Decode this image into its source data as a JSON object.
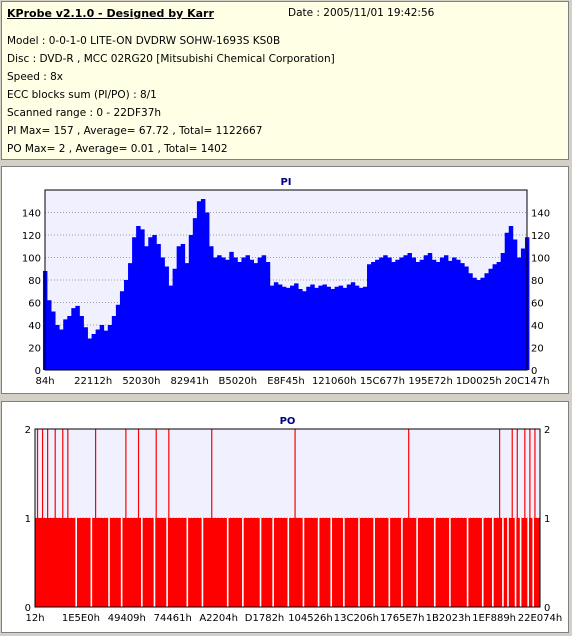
{
  "header": {
    "title": "KProbe v2.1.0 - Designed by Karr",
    "date": "Date : 2005/11/01 19:42:56",
    "lines": [
      "Model : 0-0-1-0 LITE-ON DVDRW SOHW-1693S KS0B",
      "Disc : DVD-R , MCC 02RG20   [Mitsubishi Chemical Corporation]",
      "Speed : 8x",
      "ECC blocks sum (PI/PO) : 8/1",
      "Scanned range : 0 - 22DF37h",
      "PI Max= 157 , Average= 67.72 , Total= 1122667",
      "PO Max= 2 , Average= 0.01 , Total= 1402"
    ]
  },
  "colors": {
    "pi_fill": "#0000ff",
    "po_fill": "#ff0000",
    "plot_bg": "#f0f0ff",
    "grid": "#a0a0a0",
    "title": "#000080"
  },
  "chart_data": [
    {
      "type": "area",
      "title": "PI",
      "ylim": [
        0,
        160
      ],
      "yticks": [
        0,
        20,
        40,
        60,
        80,
        100,
        120,
        140
      ],
      "xticks": [
        "84h",
        "22112h",
        "52030h",
        "82941h",
        "B5020h",
        "E8F45h",
        "121060h",
        "15C677h",
        "195E72h",
        "1D0025h",
        "20C147h"
      ],
      "series": [
        {
          "values": [
            88,
            62,
            52,
            40,
            36,
            45,
            48,
            55,
            57,
            48,
            38,
            28,
            32,
            36,
            40,
            35,
            40,
            48,
            58,
            70,
            80,
            95,
            118,
            128,
            125,
            110,
            118,
            120,
            112,
            100,
            92,
            75,
            90,
            110,
            112,
            95,
            120,
            135,
            150,
            152,
            140,
            110,
            100,
            102,
            100,
            98,
            105,
            100,
            96,
            100,
            102,
            98,
            95,
            100,
            102,
            96,
            75,
            78,
            76,
            74,
            73,
            75,
            77,
            72,
            70,
            74,
            76,
            73,
            75,
            76,
            74,
            72,
            74,
            75,
            73,
            76,
            78,
            75,
            73,
            74,
            94,
            96,
            98,
            100,
            102,
            100,
            96,
            98,
            100,
            102,
            104,
            100,
            96,
            98,
            102,
            104,
            98,
            96,
            100,
            102,
            97,
            100,
            98,
            95,
            92,
            86,
            82,
            80,
            82,
            86,
            90,
            94,
            96,
            104,
            122,
            128,
            116,
            100,
            108,
            118
          ]
        }
      ]
    },
    {
      "type": "bar",
      "title": "PO",
      "ylim": [
        0,
        2
      ],
      "yticks": [
        0,
        1,
        2
      ],
      "xticks": [
        "12h",
        "1E5E0h",
        "49409h",
        "74461h",
        "A2204h",
        "D1782h",
        "104526h",
        "13C206h",
        "1765E7h",
        "1B2023h",
        "1EF889h",
        "22E074h"
      ],
      "spikes_at_2": [
        0.005,
        0.015,
        0.025,
        0.04,
        0.055,
        0.065,
        0.12,
        0.18,
        0.205,
        0.24,
        0.265,
        0.35,
        0.515,
        0.74,
        0.92,
        0.945,
        0.955,
        0.97,
        0.98,
        0.99
      ],
      "gaps_at_0": [
        0.08,
        0.11,
        0.145,
        0.17,
        0.21,
        0.235,
        0.26,
        0.3,
        0.33,
        0.38,
        0.41,
        0.445,
        0.47,
        0.5,
        0.53,
        0.56,
        0.585,
        0.61,
        0.64,
        0.67,
        0.7,
        0.725,
        0.755,
        0.79,
        0.82,
        0.855,
        0.885,
        0.905,
        0.925,
        0.935,
        0.95,
        0.96,
        0.975,
        0.985
      ]
    }
  ]
}
